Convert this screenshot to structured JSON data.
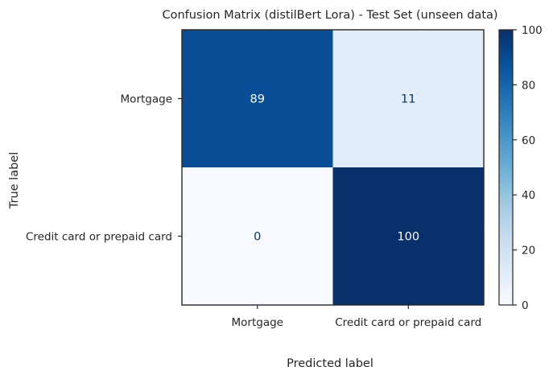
{
  "chart_data": {
    "type": "heatmap",
    "title": "Confusion Matrix (distilBert Lora) - Test Set (unseen data)",
    "xlabel": "Predicted label",
    "ylabel": "True label",
    "x_categories": [
      "Mortgage",
      "Credit card or prepaid card"
    ],
    "y_categories": [
      "Mortgage",
      "Credit card or prepaid card"
    ],
    "values": [
      [
        89,
        11
      ],
      [
        0,
        100
      ]
    ],
    "colormap": "Blues",
    "colorbar": {
      "min": 0,
      "max": 100,
      "ticks": [
        "0",
        "20",
        "40",
        "60",
        "80",
        "100"
      ]
    },
    "grid": false
  }
}
